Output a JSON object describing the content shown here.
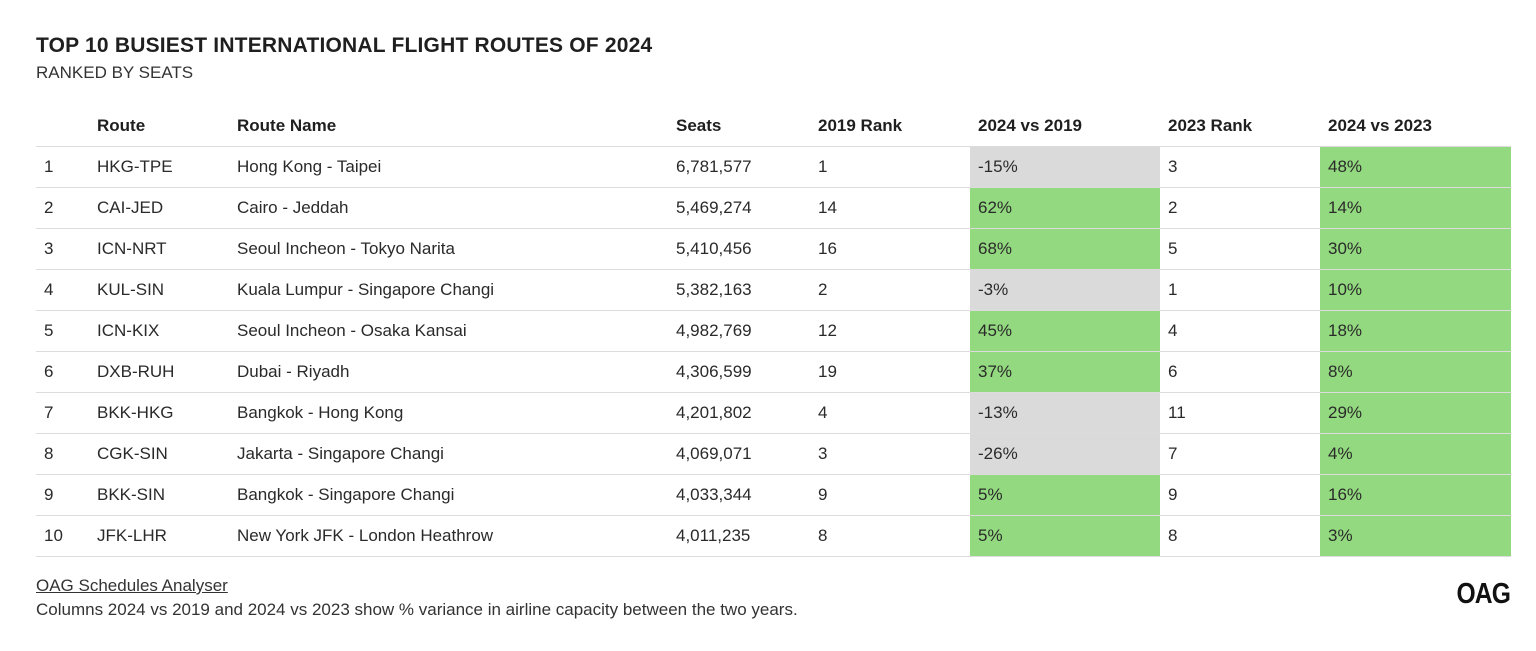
{
  "chart_data": {
    "type": "table",
    "title": "TOP 10 BUSIEST INTERNATIONAL FLIGHT ROUTES OF 2024",
    "subtitle": "RANKED BY SEATS",
    "columns": [
      "",
      "Route",
      "Route Name",
      "Seats",
      "2019 Rank",
      "2024 vs 2019",
      "2023 Rank",
      "2024 vs 2023"
    ],
    "rows": [
      {
        "rank": "1",
        "route": "HKG-TPE",
        "route_name": "Hong Kong - Taipei",
        "seats": "6,781,577",
        "rank_2019": "1",
        "vs_2019": "-15%",
        "vs_2019_value": -15,
        "rank_2023": "3",
        "vs_2023": "48%",
        "vs_2023_value": 48
      },
      {
        "rank": "2",
        "route": "CAI-JED",
        "route_name": "Cairo - Jeddah",
        "seats": "5,469,274",
        "rank_2019": "14",
        "vs_2019": "62%",
        "vs_2019_value": 62,
        "rank_2023": "2",
        "vs_2023": "14%",
        "vs_2023_value": 14
      },
      {
        "rank": "3",
        "route": "ICN-NRT",
        "route_name": "Seoul Incheon - Tokyo Narita",
        "seats": "5,410,456",
        "rank_2019": "16",
        "vs_2019": "68%",
        "vs_2019_value": 68,
        "rank_2023": "5",
        "vs_2023": "30%",
        "vs_2023_value": 30
      },
      {
        "rank": "4",
        "route": "KUL-SIN",
        "route_name": "Kuala Lumpur - Singapore Changi",
        "seats": "5,382,163",
        "rank_2019": "2",
        "vs_2019": "-3%",
        "vs_2019_value": -3,
        "rank_2023": "1",
        "vs_2023": "10%",
        "vs_2023_value": 10
      },
      {
        "rank": "5",
        "route": "ICN-KIX",
        "route_name": "Seoul Incheon - Osaka Kansai",
        "seats": "4,982,769",
        "rank_2019": "12",
        "vs_2019": "45%",
        "vs_2019_value": 45,
        "rank_2023": "4",
        "vs_2023": "18%",
        "vs_2023_value": 18
      },
      {
        "rank": "6",
        "route": "DXB-RUH",
        "route_name": "Dubai - Riyadh",
        "seats": "4,306,599",
        "rank_2019": "19",
        "vs_2019": "37%",
        "vs_2019_value": 37,
        "rank_2023": "6",
        "vs_2023": "8%",
        "vs_2023_value": 8
      },
      {
        "rank": "7",
        "route": "BKK-HKG",
        "route_name": "Bangkok - Hong Kong",
        "seats": "4,201,802",
        "rank_2019": "4",
        "vs_2019": "-13%",
        "vs_2019_value": -13,
        "rank_2023": "11",
        "vs_2023": "29%",
        "vs_2023_value": 29
      },
      {
        "rank": "8",
        "route": "CGK-SIN",
        "route_name": "Jakarta - Singapore Changi",
        "seats": "4,069,071",
        "rank_2019": "3",
        "vs_2019": "-26%",
        "vs_2019_value": -26,
        "rank_2023": "7",
        "vs_2023": "4%",
        "vs_2023_value": 4
      },
      {
        "rank": "9",
        "route": "BKK-SIN",
        "route_name": "Bangkok - Singapore Changi",
        "seats": "4,033,344",
        "rank_2019": "9",
        "vs_2019": "5%",
        "vs_2019_value": 5,
        "rank_2023": "9",
        "vs_2023": "16%",
        "vs_2023_value": 16
      },
      {
        "rank": "10",
        "route": "JFK-LHR",
        "route_name": "New York JFK - London Heathrow",
        "seats": "4,011,235",
        "rank_2019": "8",
        "vs_2019": "5%",
        "vs_2019_value": 5,
        "rank_2023": "8",
        "vs_2023": "3%",
        "vs_2023_value": 3
      }
    ]
  },
  "footer": {
    "source": "OAG Schedules Analyser",
    "note": "Columns 2024 vs 2019 and 2024 vs 2023 show % variance in airline capacity between the two years.",
    "logo": "OAG"
  },
  "colors": {
    "positive_fill": "#93d97f",
    "negative_fill": "#dadada",
    "row_border": "#dcdcdc"
  }
}
